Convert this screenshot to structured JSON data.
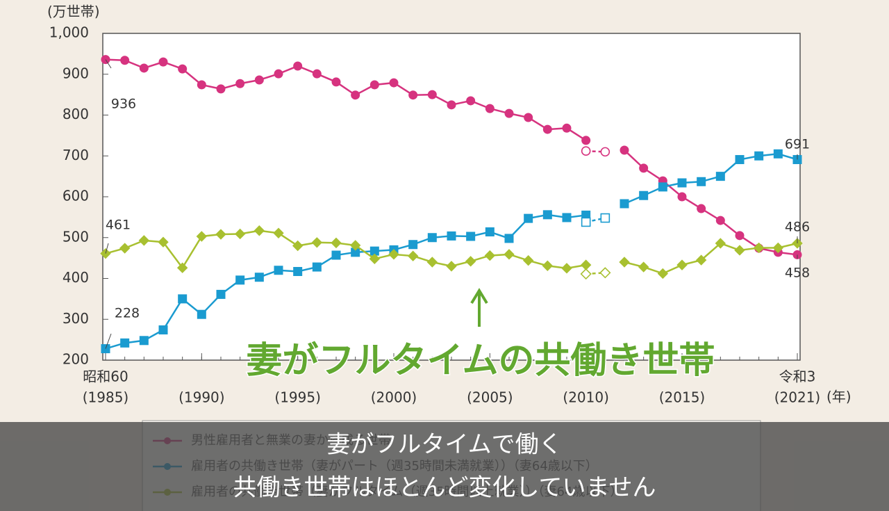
{
  "chart_data": {
    "type": "line",
    "y_unit": "(万世帯)",
    "x_unit": "(年)",
    "x": [
      1985,
      1986,
      1987,
      1988,
      1989,
      1990,
      1991,
      1992,
      1993,
      1994,
      1995,
      1996,
      1997,
      1998,
      1999,
      2000,
      2001,
      2002,
      2003,
      2004,
      2005,
      2006,
      2007,
      2008,
      2009,
      2010,
      2011,
      2012,
      2013,
      2014,
      2015,
      2016,
      2017,
      2018,
      2019,
      2020,
      2021
    ],
    "xlim": [
      1985,
      2021
    ],
    "xticks": [
      {
        "value": 1985,
        "label": "(1985)"
      },
      {
        "value": 1990,
        "label": "(1990)"
      },
      {
        "value": 1995,
        "label": "(1995)"
      },
      {
        "value": 2000,
        "label": "(2000)"
      },
      {
        "value": 2005,
        "label": "(2005)"
      },
      {
        "value": 2010,
        "label": "(2010)"
      },
      {
        "value": 2015,
        "label": "(2015)"
      },
      {
        "value": 2021,
        "label": "(2021)"
      }
    ],
    "era_labels": [
      {
        "value": 1985,
        "label": "昭和60"
      },
      {
        "value": 2021,
        "label": "令和3"
      }
    ],
    "ylim": [
      200,
      1000
    ],
    "yticks": [
      200,
      300,
      400,
      500,
      600,
      700,
      800,
      900,
      {
        "value": 1000,
        "label": "1,000"
      }
    ],
    "series": [
      {
        "name": "男性雇用者と無業の妻から成る世帯",
        "color": "#d6337f",
        "marker": "circle",
        "values": [
          936,
          934,
          915,
          930,
          913,
          874,
          864,
          877,
          886,
          901,
          920,
          901,
          881,
          849,
          874,
          879,
          849,
          850,
          825,
          835,
          816,
          804,
          794,
          765,
          768,
          738,
          null,
          714,
          670,
          639,
          600,
          571,
          542,
          505,
          474,
          464,
          458
        ]
      },
      {
        "name": "雇用者の共働き世帯（妻がパート（週35時間未満就業））（妻64歳以下）",
        "color": "#1a9bd0",
        "marker": "square",
        "values": [
          228,
          242,
          248,
          274,
          350,
          312,
          361,
          396,
          403,
          420,
          417,
          428,
          457,
          464,
          467,
          470,
          483,
          500,
          504,
          503,
          514,
          498,
          547,
          556,
          549,
          555,
          null,
          583,
          603,
          624,
          634,
          637,
          650,
          691,
          700,
          705,
          691
        ]
      },
      {
        "name": "雇用者の共働き世帯（妻がフルタイム（週35時間以上就業））（妻64歳以下）",
        "color": "#a8c030",
        "marker": "diamond",
        "values": [
          461,
          474,
          493,
          489,
          426,
          503,
          508,
          509,
          517,
          511,
          480,
          488,
          487,
          481,
          448,
          459,
          455,
          440,
          430,
          442,
          456,
          459,
          444,
          431,
          425,
          433,
          null,
          440,
          428,
          412,
          433,
          445,
          486,
          469,
          475,
          475,
          486
        ]
      },
      {
        "color": "#d6337f",
        "marker": "circle",
        "open": true,
        "values": [
          null,
          null,
          null,
          null,
          null,
          null,
          null,
          null,
          null,
          null,
          null,
          null,
          null,
          null,
          null,
          null,
          null,
          null,
          null,
          null,
          null,
          null,
          null,
          null,
          null,
          712,
          710,
          null,
          null,
          null,
          null,
          null,
          null,
          null,
          null,
          null,
          null
        ]
      },
      {
        "color": "#1a9bd0",
        "marker": "square",
        "open": true,
        "values": [
          null,
          null,
          null,
          null,
          null,
          null,
          null,
          null,
          null,
          null,
          null,
          null,
          null,
          null,
          null,
          null,
          null,
          null,
          null,
          null,
          null,
          null,
          null,
          null,
          null,
          538,
          548,
          null,
          null,
          null,
          null,
          null,
          null,
          null,
          null,
          null,
          null
        ]
      },
      {
        "color": "#a8c030",
        "marker": "diamond",
        "open": true,
        "values": [
          null,
          null,
          null,
          null,
          null,
          null,
          null,
          null,
          null,
          null,
          null,
          null,
          null,
          null,
          null,
          null,
          null,
          null,
          null,
          null,
          null,
          null,
          null,
          null,
          null,
          411,
          414,
          null,
          null,
          null,
          null,
          null,
          null,
          null,
          null,
          null,
          null
        ]
      }
    ]
  },
  "overlay": {
    "caption": "妻がフルタイムの共働き世帯",
    "subtitle": [
      "妻がフルタイムで働く",
      "共働き世帯はほとんど変化していません"
    ]
  }
}
